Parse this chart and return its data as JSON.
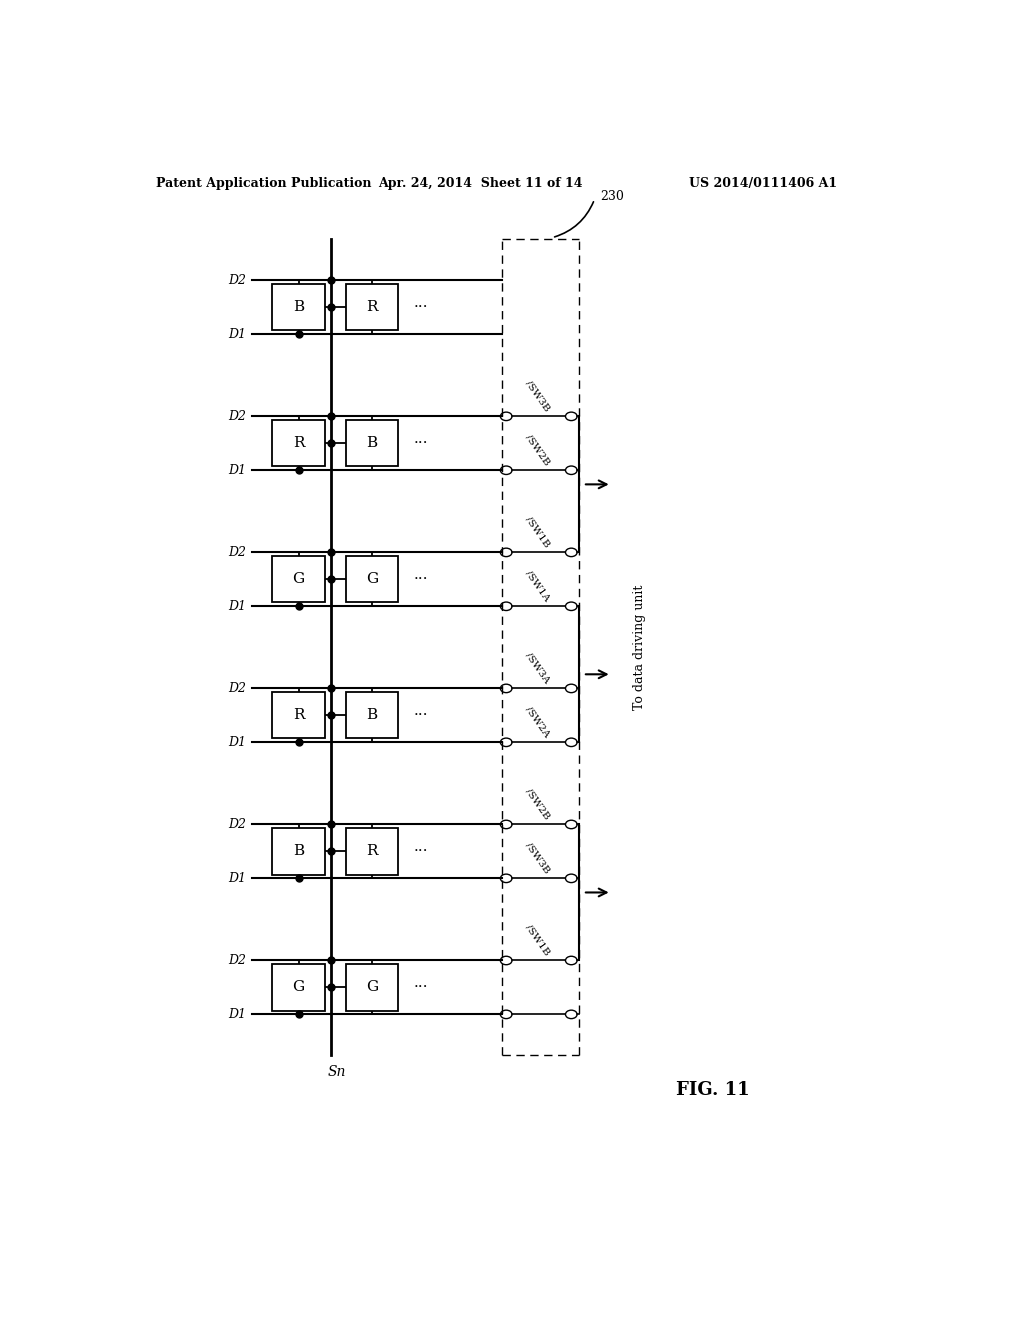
{
  "header_left": "Patent Application Publication",
  "header_mid": "Apr. 24, 2014  Sheet 11 of 14",
  "header_right": "US 2014/0111406 A1",
  "fig_label": "FIG. 11",
  "bracket_label": "230",
  "Sn_label": "Sn",
  "side_label": "To data driving unit",
  "rows": [
    {
      "box1": "B",
      "box2": "R",
      "has_switches": false
    },
    {
      "box1": "R",
      "box2": "B",
      "has_switches": true
    },
    {
      "box1": "G",
      "box2": "G",
      "has_switches": true
    },
    {
      "box1": "R",
      "box2": "B",
      "has_switches": true
    },
    {
      "box1": "B",
      "box2": "R",
      "has_switches": true
    },
    {
      "box1": "G",
      "box2": "G",
      "has_switches": true
    }
  ],
  "sw_labels_per_line": [
    {
      "row": 1,
      "line": "D2",
      "label": "/SW3B"
    },
    {
      "row": 1,
      "line": "D1",
      "label": "/SW2B"
    },
    {
      "row": 2,
      "line": "D2",
      "label": "/SW1B"
    },
    {
      "row": 2,
      "line": "D1",
      "label": "/SW1A"
    },
    {
      "row": 3,
      "line": "D2",
      "label": "/SW3A"
    },
    {
      "row": 3,
      "line": "D1",
      "label": "/SW2A"
    },
    {
      "row": 4,
      "line": "D2",
      "label": "/SW2B"
    },
    {
      "row": 4,
      "line": "D1",
      "label": "/SW3B"
    },
    {
      "row": 5,
      "line": "D2",
      "label": "/SW1B"
    },
    {
      "row": 5,
      "line": "D1",
      "label": ""
    }
  ],
  "arrow_between_rows": [
    [
      1,
      2
    ],
    [
      3,
      4
    ],
    [
      4,
      5
    ]
  ],
  "background": "#ffffff",
  "lc": "#000000"
}
